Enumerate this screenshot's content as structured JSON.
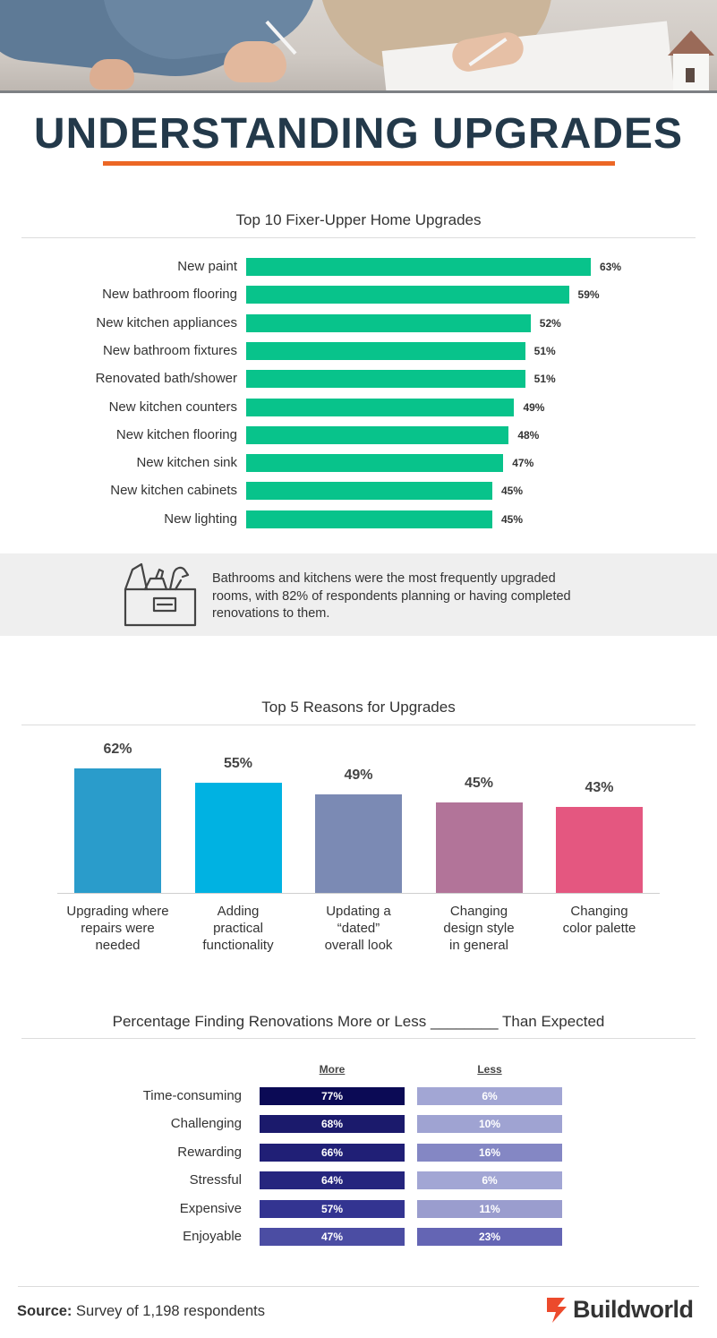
{
  "title": "UNDERSTANDING UPGRADES",
  "colors": {
    "title": "#23394a",
    "accent": "#ec6725",
    "bar_green": "#08c38b"
  },
  "chart_data": [
    {
      "type": "bar",
      "orientation": "horizontal",
      "title": "Top 10 Fixer-Upper Home Upgrades",
      "categories": [
        "New paint",
        "New bathroom flooring",
        "New kitchen appliances",
        "New bathroom fixtures",
        "Renovated bath/shower",
        "New kitchen counters",
        "New kitchen flooring",
        "New kitchen sink",
        "New kitchen cabinets",
        "New lighting"
      ],
      "values": [
        63,
        59,
        52,
        51,
        51,
        49,
        48,
        47,
        45,
        45
      ],
      "value_labels": [
        "63%",
        "59%",
        "52%",
        "51%",
        "51%",
        "49%",
        "48%",
        "47%",
        "45%",
        "45%"
      ],
      "grid": false
    },
    {
      "type": "bar",
      "orientation": "vertical",
      "title": "Top 5 Reasons for Upgrades",
      "categories": [
        "Upgrading where repairs were needed",
        "Adding practical functionality",
        "Updating a “dated” overall look",
        "Changing design style in general",
        "Changing color palette"
      ],
      "category_lines": [
        [
          "Upgrading where",
          "repairs were",
          "needed"
        ],
        [
          "Adding",
          "practical",
          "functionality"
        ],
        [
          "Updating a",
          "“dated”",
          "overall look"
        ],
        [
          "Changing",
          "design style",
          "in general"
        ],
        [
          "Changing",
          "color palette"
        ]
      ],
      "values": [
        62,
        55,
        49,
        45,
        43
      ],
      "value_labels": [
        "62%",
        "55%",
        "49%",
        "45%",
        "43%"
      ],
      "colors": [
        "#2a9ccb",
        "#00b2e2",
        "#7b8ab4",
        "#b27499",
        "#e45780"
      ],
      "grid": false
    },
    {
      "type": "table",
      "title": "Percentage Finding Renovations More or Less ________ Than Expected",
      "columns": [
        "More",
        "Less"
      ],
      "rows": [
        "Time-consuming",
        "Challenging",
        "Rewarding",
        "Stressful",
        "Expensive",
        "Enjoyable"
      ],
      "more": [
        77,
        68,
        66,
        64,
        57,
        47
      ],
      "less": [
        6,
        10,
        16,
        6,
        11,
        23
      ],
      "more_labels": [
        "77%",
        "68%",
        "66%",
        "64%",
        "57%",
        "47%"
      ],
      "less_labels": [
        "6%",
        "10%",
        "16%",
        "6%",
        "11%",
        "23%"
      ],
      "more_colors": [
        "#0b0a55",
        "#1b1a6c",
        "#201f76",
        "#25257e",
        "#333491",
        "#4b4da3"
      ],
      "less_colors": [
        "#a2a6d4",
        "#9fa3d2",
        "#8487c4",
        "#a2a6d4",
        "#9a9dce",
        "#6465b4"
      ]
    }
  ],
  "callout": {
    "icon": "toolbox-icon",
    "text": "Bathrooms and kitchens were the most frequently upgraded rooms, with 82% of respondents planning or having completed renovations to them."
  },
  "footer": {
    "source_label": "Source:",
    "source_text": " Survey of 1,198 respondents",
    "brand": "Buildworld",
    "brand_icon": "buildworld-logo-icon"
  }
}
